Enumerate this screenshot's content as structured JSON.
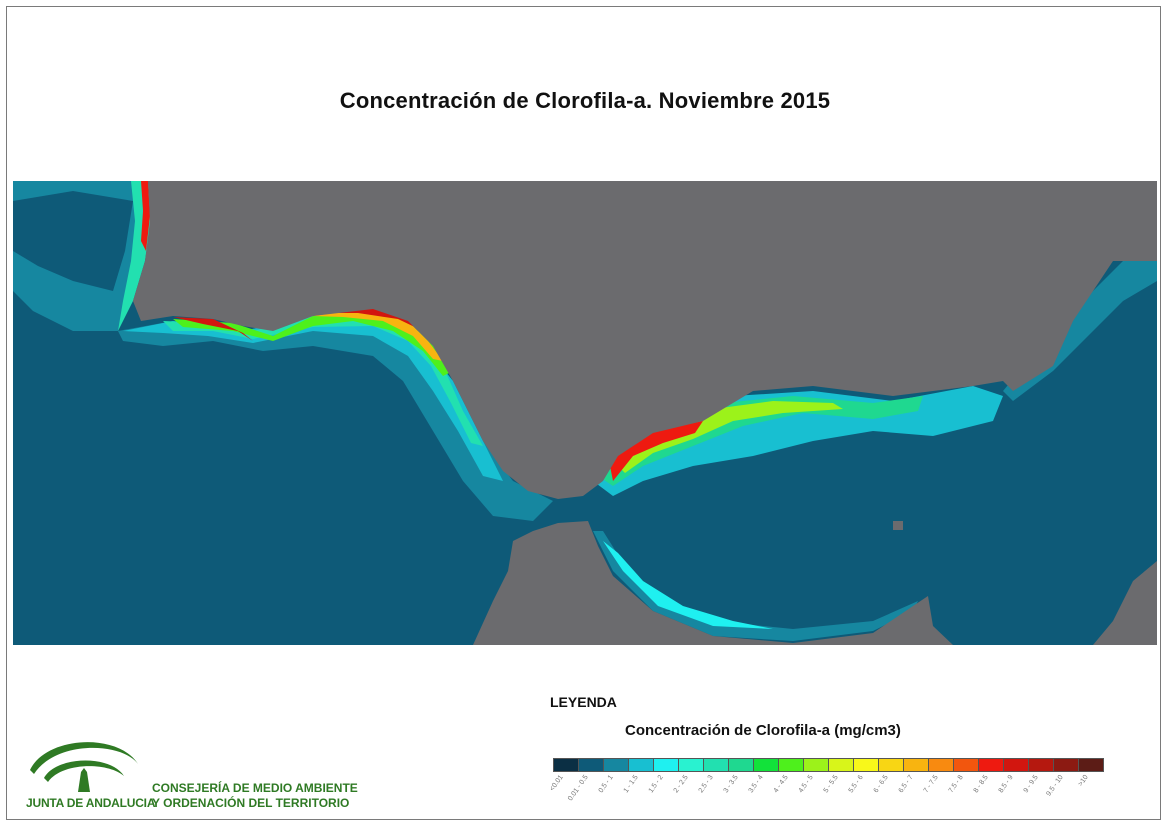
{
  "title": "Concentración de Clorofila-a. Noviembre 2015",
  "legend": {
    "heading": "LEYENDA",
    "subtitle": "Concentración de Clorofila-a (mg/cm3)",
    "classes": [
      {
        "label": "<0.01",
        "color": "#0b2f44"
      },
      {
        "label": "0.01 - 0.5",
        "color": "#0e5a78"
      },
      {
        "label": "0.5 - 1",
        "color": "#1687a0"
      },
      {
        "label": "1 - 1.5",
        "color": "#18bfd1"
      },
      {
        "label": "1.5 - 2",
        "color": "#1ff0f0"
      },
      {
        "label": "2 - 2.5",
        "color": "#29f2d0"
      },
      {
        "label": "2.5 - 3",
        "color": "#22e0b0"
      },
      {
        "label": "3 - 3.5",
        "color": "#1fd890"
      },
      {
        "label": "3.5 - 4",
        "color": "#12e23a"
      },
      {
        "label": "4 - 4.5",
        "color": "#4ef01c"
      },
      {
        "label": "4.5 - 5",
        "color": "#9cf21a"
      },
      {
        "label": "5 - 5.5",
        "color": "#d8f51a"
      },
      {
        "label": "5.5 - 6",
        "color": "#f8f81a"
      },
      {
        "label": "6 - 6.5",
        "color": "#f8d614"
      },
      {
        "label": "6.5 - 7",
        "color": "#f8b410"
      },
      {
        "label": "7 - 7.5",
        "color": "#f88a10"
      },
      {
        "label": "7.5 - 8",
        "color": "#f2560e"
      },
      {
        "label": "8 - 8.5",
        "color": "#ee1a10"
      },
      {
        "label": "8.5 - 9",
        "color": "#d2160f"
      },
      {
        "label": "9 - 9.5",
        "color": "#b5180f"
      },
      {
        "label": "9.5 - 10",
        "color": "#8c1a12"
      },
      {
        "label": ">10",
        "color": "#5c1c16"
      }
    ]
  },
  "map": {
    "land_color": "#6b6b6e",
    "sea_color": "#0e5a78"
  },
  "logo": {
    "name": "JUNTA DE ANDALUCIA",
    "department_line1": "CONSEJERÍA DE MEDIO AMBIENTE",
    "department_line2": "Y ORDENACIÓN DEL TERRITORIO",
    "brand_color": "#2f7a24"
  }
}
